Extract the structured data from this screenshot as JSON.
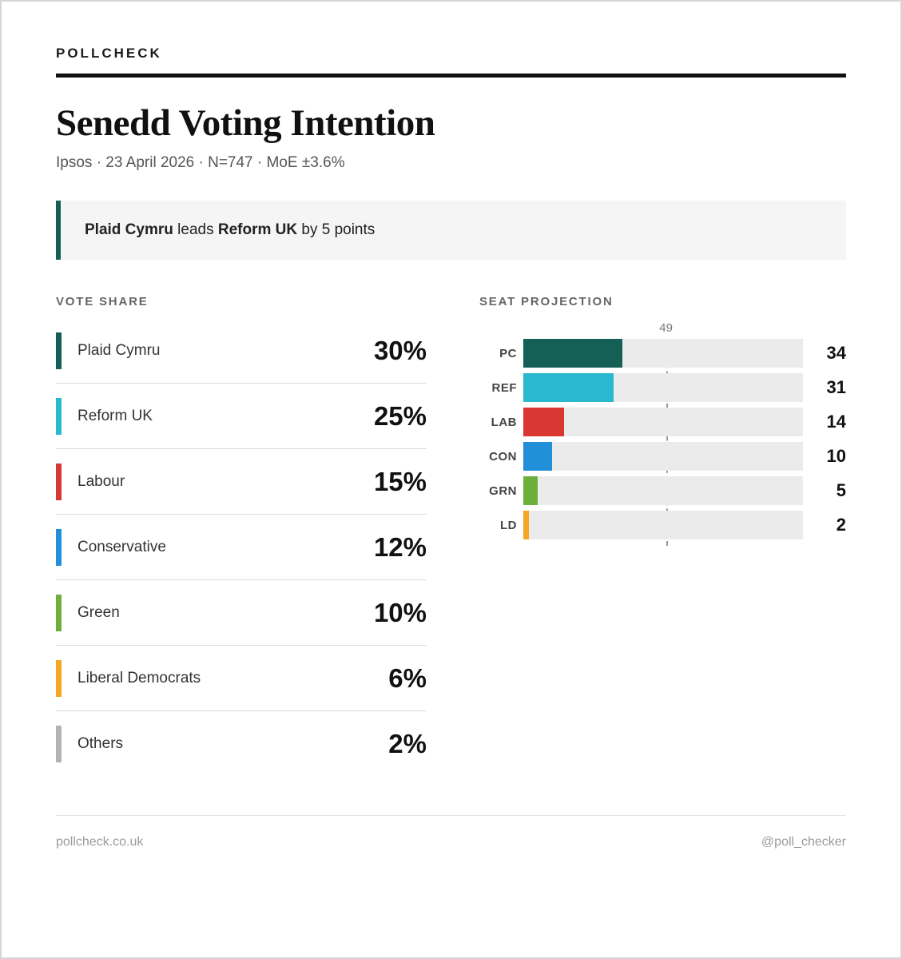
{
  "page": {
    "brand": "POLLCHECK",
    "title": "Senedd Voting Intention",
    "subtitle": "Ipsos · 23 April 2026 · N=747 · MoE ±3.6%"
  },
  "callout": {
    "lead_party": "Plaid Cymru",
    "middle": " leads ",
    "trail_party": "Reform UK",
    "suffix": " by 5 points",
    "accent_color": "#145f56"
  },
  "vote_share": {
    "heading": "VOTE SHARE",
    "rows": [
      {
        "party": "Plaid Cymru",
        "share_label": "30%",
        "color": "#145f56"
      },
      {
        "party": "Reform UK",
        "share_label": "25%",
        "color": "#29b8ce"
      },
      {
        "party": "Labour",
        "share_label": "15%",
        "color": "#d93832"
      },
      {
        "party": "Conservative",
        "share_label": "12%",
        "color": "#2190d8"
      },
      {
        "party": "Green",
        "share_label": "10%",
        "color": "#6eae3b"
      },
      {
        "party": "Liberal Democrats",
        "share_label": "6%",
        "color": "#f5a623"
      },
      {
        "party": "Others",
        "share_label": "2%",
        "color": "#b3b3b3"
      }
    ]
  },
  "seat_projection": {
    "heading": "SEAT PROJECTION",
    "total_seats": 96,
    "majority": 49,
    "majority_label": "49",
    "track_color": "#ebebeb",
    "rows": [
      {
        "label": "PC",
        "seats": 34,
        "seats_label": "34",
        "color": "#145f56"
      },
      {
        "label": "REF",
        "seats": 31,
        "seats_label": "31",
        "color": "#29b8ce"
      },
      {
        "label": "LAB",
        "seats": 14,
        "seats_label": "14",
        "color": "#d93832"
      },
      {
        "label": "CON",
        "seats": 10,
        "seats_label": "10",
        "color": "#2190d8"
      },
      {
        "label": "GRN",
        "seats": 5,
        "seats_label": "5",
        "color": "#6eae3b"
      },
      {
        "label": "LD",
        "seats": 2,
        "seats_label": "2",
        "color": "#f5a623"
      }
    ]
  },
  "footer": {
    "site": "pollcheck.co.uk",
    "handle": "@poll_checker"
  },
  "chart_data": [
    {
      "type": "bar",
      "title": "VOTE SHARE",
      "categories": [
        "Plaid Cymru",
        "Reform UK",
        "Labour",
        "Conservative",
        "Green",
        "Liberal Democrats",
        "Others"
      ],
      "values": [
        30,
        25,
        15,
        12,
        10,
        6,
        2
      ],
      "unit": "%",
      "colors": [
        "#145f56",
        "#29b8ce",
        "#d93832",
        "#2190d8",
        "#6eae3b",
        "#f5a623",
        "#b3b3b3"
      ]
    },
    {
      "type": "bar",
      "orientation": "horizontal",
      "title": "SEAT PROJECTION",
      "categories": [
        "PC",
        "REF",
        "LAB",
        "CON",
        "GRN",
        "LD"
      ],
      "values": [
        34,
        31,
        14,
        10,
        5,
        2
      ],
      "xlim": [
        0,
        96
      ],
      "annotations": [
        {
          "type": "vline",
          "x": 49,
          "label": "49",
          "style": "dashed"
        }
      ],
      "colors": [
        "#145f56",
        "#29b8ce",
        "#d93832",
        "#2190d8",
        "#6eae3b",
        "#f5a623"
      ],
      "grid": false,
      "legend": false
    }
  ]
}
